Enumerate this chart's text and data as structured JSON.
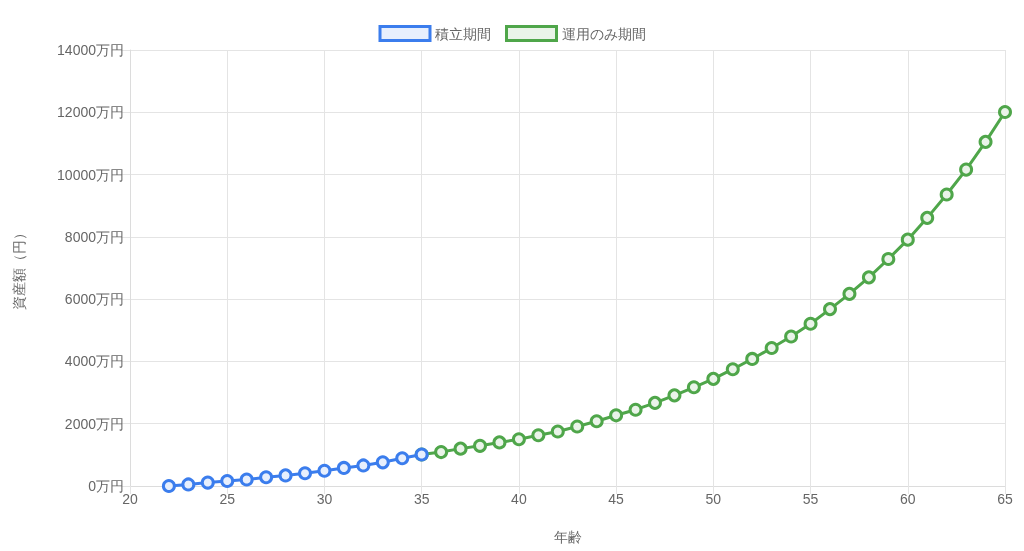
{
  "chart_data": {
    "type": "line",
    "xlabel": "年齢",
    "ylabel": "資産額（円）",
    "xlim": [
      20,
      65
    ],
    "xticks": [
      20,
      25,
      30,
      35,
      40,
      45,
      50,
      55,
      60,
      65
    ],
    "ylim": [
      0,
      14000
    ],
    "yticks": [
      {
        "value": 0,
        "label": "0万円"
      },
      {
        "value": 2000,
        "label": "2000万円"
      },
      {
        "value": 4000,
        "label": "4000万円"
      },
      {
        "value": 6000,
        "label": "6000万円"
      },
      {
        "value": 8000,
        "label": "8000万円"
      },
      {
        "value": 10000,
        "label": "10000万円"
      },
      {
        "value": 12000,
        "label": "12000万円"
      },
      {
        "value": 14000,
        "label": "14000万円"
      }
    ],
    "series": [
      {
        "name": "積立期間",
        "color": "#3b7ded",
        "x": [
          22,
          23,
          24,
          25,
          26,
          27,
          28,
          29,
          30,
          31,
          32,
          33,
          34,
          35
        ],
        "values": [
          0,
          50,
          110,
          160,
          210,
          280,
          340,
          410,
          490,
          580,
          660,
          760,
          890,
          1010
        ]
      },
      {
        "name": "運用のみ期間",
        "color": "#4fa64a",
        "x": [
          35,
          36,
          37,
          38,
          39,
          40,
          41,
          42,
          43,
          44,
          45,
          46,
          47,
          48,
          49,
          50,
          51,
          52,
          53,
          54,
          55,
          56,
          57,
          58,
          59,
          60,
          61,
          62,
          63,
          64,
          65
        ],
        "values": [
          1010,
          1090,
          1200,
          1290,
          1400,
          1500,
          1630,
          1750,
          1910,
          2080,
          2270,
          2450,
          2670,
          2910,
          3170,
          3440,
          3750,
          4080,
          4430,
          4800,
          5210,
          5680,
          6170,
          6700,
          7290,
          7910,
          8610,
          9360,
          10160,
          11050,
          12010
        ]
      }
    ],
    "grid": true,
    "legend": "top",
    "marker": "circle",
    "line_style": "solid"
  }
}
